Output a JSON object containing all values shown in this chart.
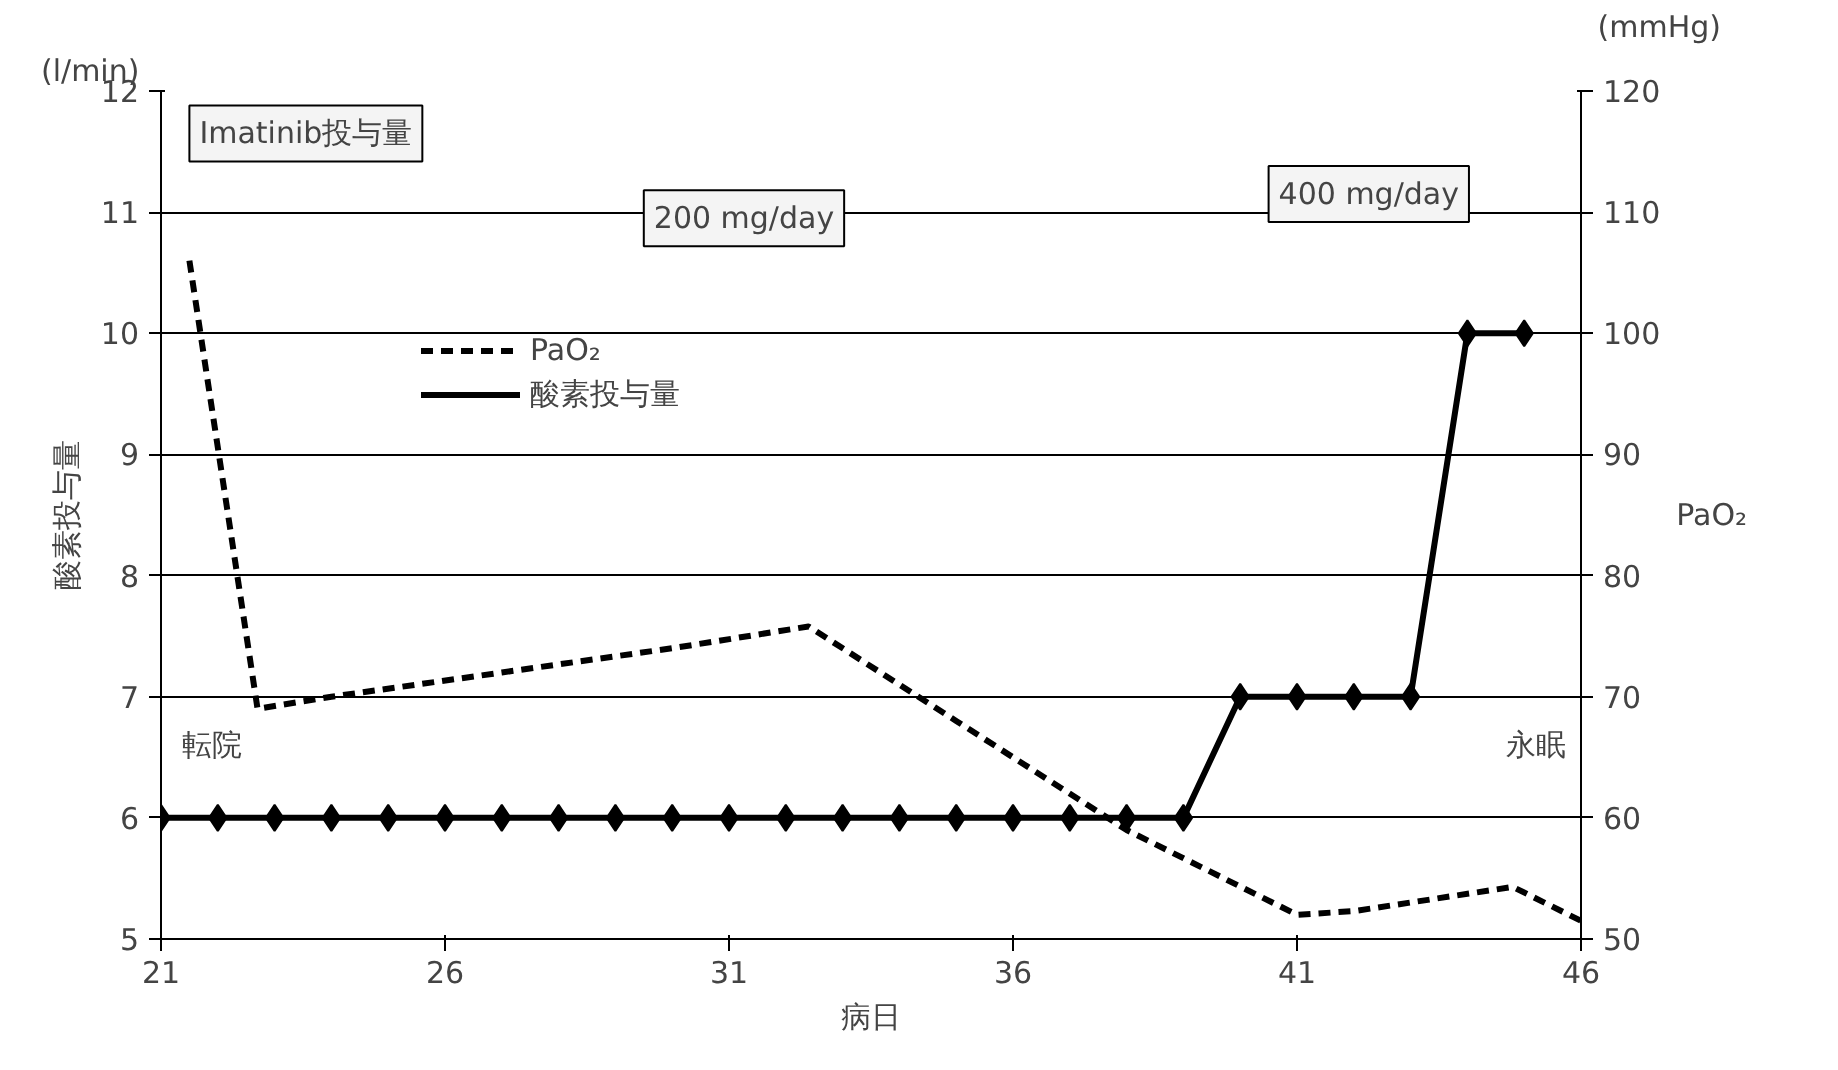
{
  "chart_data": {
    "type": "line",
    "xlabel": "病日",
    "ylabel": "酸素投与量",
    "y2label": "PaO₂",
    "xlim": [
      21,
      46
    ],
    "xticks": [
      21,
      26,
      31,
      36,
      41,
      46
    ],
    "ylim": [
      5,
      12
    ],
    "yticks": [
      5,
      6,
      7,
      8,
      9,
      10,
      11,
      12
    ],
    "y2lim": [
      50,
      120
    ],
    "y2ticks": [
      50,
      60,
      70,
      80,
      90,
      100,
      110,
      120
    ],
    "grid": "y",
    "legend": "top left",
    "series": [
      {
        "name": "PaO₂",
        "color": "#000000",
        "axis": "y2",
        "line_style": "dashed",
        "marker": "none",
        "x": [
          21.5,
          22.7,
          24,
          27,
          30,
          32.4,
          35,
          38,
          41,
          42,
          44.8,
          46
        ],
        "values": [
          106,
          69,
          70,
          72,
          74,
          75.8,
          68,
          59,
          52,
          52.3,
          54.3,
          51.5
        ]
      },
      {
        "name": "酸素投与量",
        "color": "#000000",
        "axis": "y",
        "line_style": "solid",
        "marker": "diamond",
        "x": [
          21,
          22,
          23,
          24,
          25,
          26,
          27,
          28,
          29,
          30,
          31,
          32,
          33,
          34,
          35,
          36,
          37,
          38,
          39,
          40,
          41,
          42,
          43,
          44,
          45
        ],
        "values": [
          6,
          6,
          6,
          6,
          6,
          6,
          6,
          6,
          6,
          6,
          6,
          6,
          6,
          6,
          6,
          6,
          6,
          6,
          6,
          7,
          7,
          7,
          7,
          10,
          10
        ]
      }
    ],
    "annotations": [
      "(l/min)",
      "(mmHg)",
      "Imatinib投与量",
      "200 mg/day",
      "400 mg/day",
      "転院",
      "永眠"
    ]
  }
}
